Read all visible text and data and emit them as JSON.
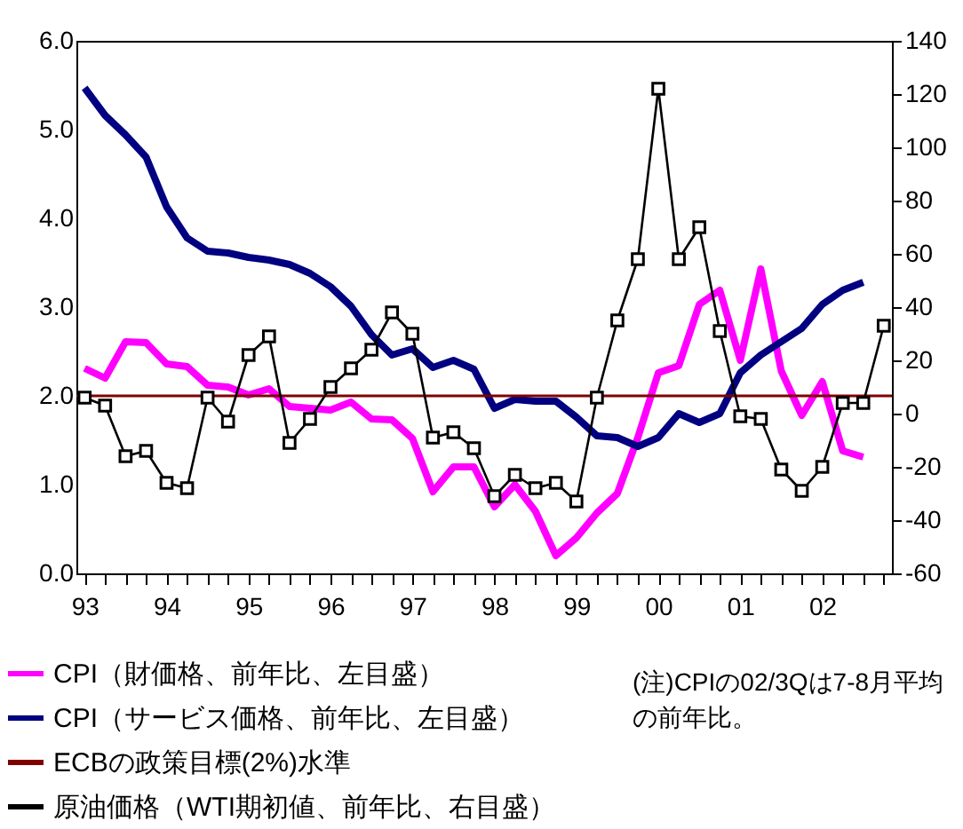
{
  "chart_data": {
    "type": "line",
    "categories": [
      "93",
      null,
      null,
      null,
      "94",
      null,
      null,
      null,
      "95",
      null,
      null,
      null,
      "96",
      null,
      null,
      null,
      "97",
      null,
      null,
      null,
      "98",
      null,
      null,
      null,
      "99",
      null,
      null,
      null,
      "00",
      null,
      null,
      null,
      "01",
      null,
      null,
      null,
      "02",
      null,
      null,
      null
    ],
    "series": [
      {
        "name": "CPI（財価格、前年比、左目盛）",
        "color": "#ff00ff",
        "values": [
          2.31,
          2.2,
          2.61,
          2.6,
          2.36,
          2.33,
          2.12,
          2.1,
          2.01,
          2.08,
          1.88,
          1.86,
          1.84,
          1.93,
          1.74,
          1.73,
          1.52,
          0.92,
          1.2,
          1.2,
          0.75,
          1.0,
          0.7,
          0.2,
          0.4,
          0.68,
          0.9,
          1.53,
          2.26,
          2.34,
          3.03,
          3.19,
          2.4,
          3.43,
          2.28,
          1.78,
          2.16,
          1.38,
          1.31,
          null
        ]
      },
      {
        "name": "CPI（サービス価格、前年比、左目盛）",
        "color": "#000080",
        "values": [
          5.47,
          5.16,
          4.94,
          4.69,
          4.13,
          3.78,
          3.63,
          3.61,
          3.56,
          3.53,
          3.48,
          3.38,
          3.23,
          3.01,
          2.69,
          2.46,
          2.53,
          2.32,
          2.4,
          2.3,
          1.86,
          1.96,
          1.94,
          1.94,
          1.76,
          1.55,
          1.53,
          1.43,
          1.53,
          1.8,
          1.7,
          1.8,
          2.26,
          2.46,
          2.61,
          2.76,
          3.03,
          3.19,
          3.28,
          null
        ]
      },
      {
        "name": "原油価格（WTI期初値、前年比、右目盛）",
        "color": "#000000",
        "axis": "y2",
        "marker": "square",
        "values": [
          6,
          3,
          -16,
          -14,
          -26,
          -28,
          6,
          -3,
          22,
          29,
          -11,
          -2,
          10,
          17,
          24,
          38,
          30,
          -9,
          -7,
          -13,
          -31,
          -23,
          -28,
          -26,
          -33,
          6,
          35,
          58,
          122,
          58,
          70,
          31,
          -1,
          -2,
          -21,
          -29,
          -20,
          4,
          4,
          33
        ]
      }
    ],
    "ref_lines": [
      {
        "axis": "y",
        "value": 2.0,
        "label": "ECBの政策目標(2%)水準",
        "color": "#800000"
      }
    ],
    "ylim": [
      0,
      6
    ],
    "yticks": [
      {
        "value": 0,
        "label": "0.0"
      },
      {
        "value": 1,
        "label": "1.0"
      },
      {
        "value": 2,
        "label": "2.0"
      },
      {
        "value": 3,
        "label": "3.0"
      },
      {
        "value": 4,
        "label": "4.0"
      },
      {
        "value": 5,
        "label": "5.0"
      },
      {
        "value": 6,
        "label": "6.0"
      }
    ],
    "y2lim": [
      -60,
      140
    ],
    "y2ticks": [
      -60,
      -40,
      -20,
      0,
      20,
      40,
      60,
      80,
      100,
      120,
      140
    ],
    "grid": false,
    "legend": "bottom left",
    "annotations": [
      "(注)CPIの02/3Qは7-8月平均の前年比。"
    ]
  }
}
